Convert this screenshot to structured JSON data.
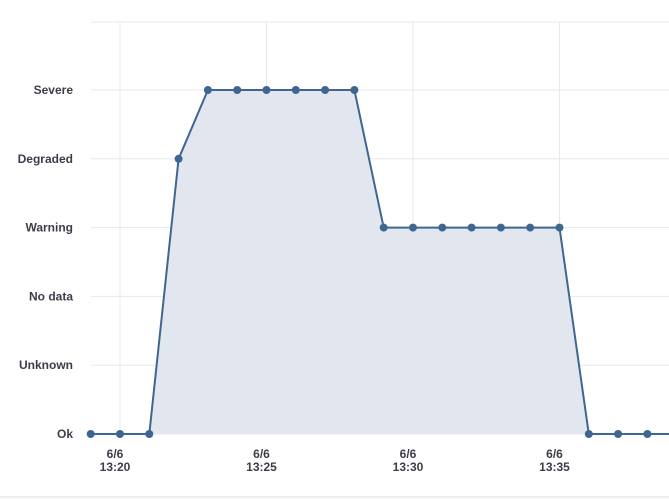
{
  "chart_data": {
    "type": "area",
    "title": "",
    "xlabel": "",
    "ylabel": "",
    "y_categories": [
      "Ok",
      "Unknown",
      "No data",
      "Warning",
      "Degraded",
      "Severe"
    ],
    "x_ticks": [
      {
        "date": "6/6",
        "time": "13:20",
        "minute": 0
      },
      {
        "date": "6/6",
        "time": "13:25",
        "minute": 5
      },
      {
        "date": "6/6",
        "time": "13:30",
        "minute": 10
      },
      {
        "date": "6/6",
        "time": "13:35",
        "minute": 15
      }
    ],
    "x_unit": "minutes after 6/6 13:20",
    "xlim": [
      -1,
      18.7
    ],
    "points": [
      {
        "x": -1,
        "y": "Ok"
      },
      {
        "x": 0,
        "y": "Ok"
      },
      {
        "x": 1,
        "y": "Ok"
      },
      {
        "x": 2,
        "y": "Degraded"
      },
      {
        "x": 3,
        "y": "Severe"
      },
      {
        "x": 4,
        "y": "Severe"
      },
      {
        "x": 5,
        "y": "Severe"
      },
      {
        "x": 6,
        "y": "Severe"
      },
      {
        "x": 7,
        "y": "Severe"
      },
      {
        "x": 8,
        "y": "Severe"
      },
      {
        "x": 9,
        "y": "Warning"
      },
      {
        "x": 10,
        "y": "Warning"
      },
      {
        "x": 11,
        "y": "Warning"
      },
      {
        "x": 12,
        "y": "Warning"
      },
      {
        "x": 13,
        "y": "Warning"
      },
      {
        "x": 14,
        "y": "Warning"
      },
      {
        "x": 15,
        "y": "Warning"
      },
      {
        "x": 16,
        "y": "Ok"
      },
      {
        "x": 17,
        "y": "Ok"
      },
      {
        "x": 18,
        "y": "Ok"
      }
    ],
    "grid": true,
    "colors": {
      "line": "#3f6690",
      "fill": "#e2e7ef",
      "marker": "#3f6690",
      "grid": "#e6e8ec"
    }
  }
}
